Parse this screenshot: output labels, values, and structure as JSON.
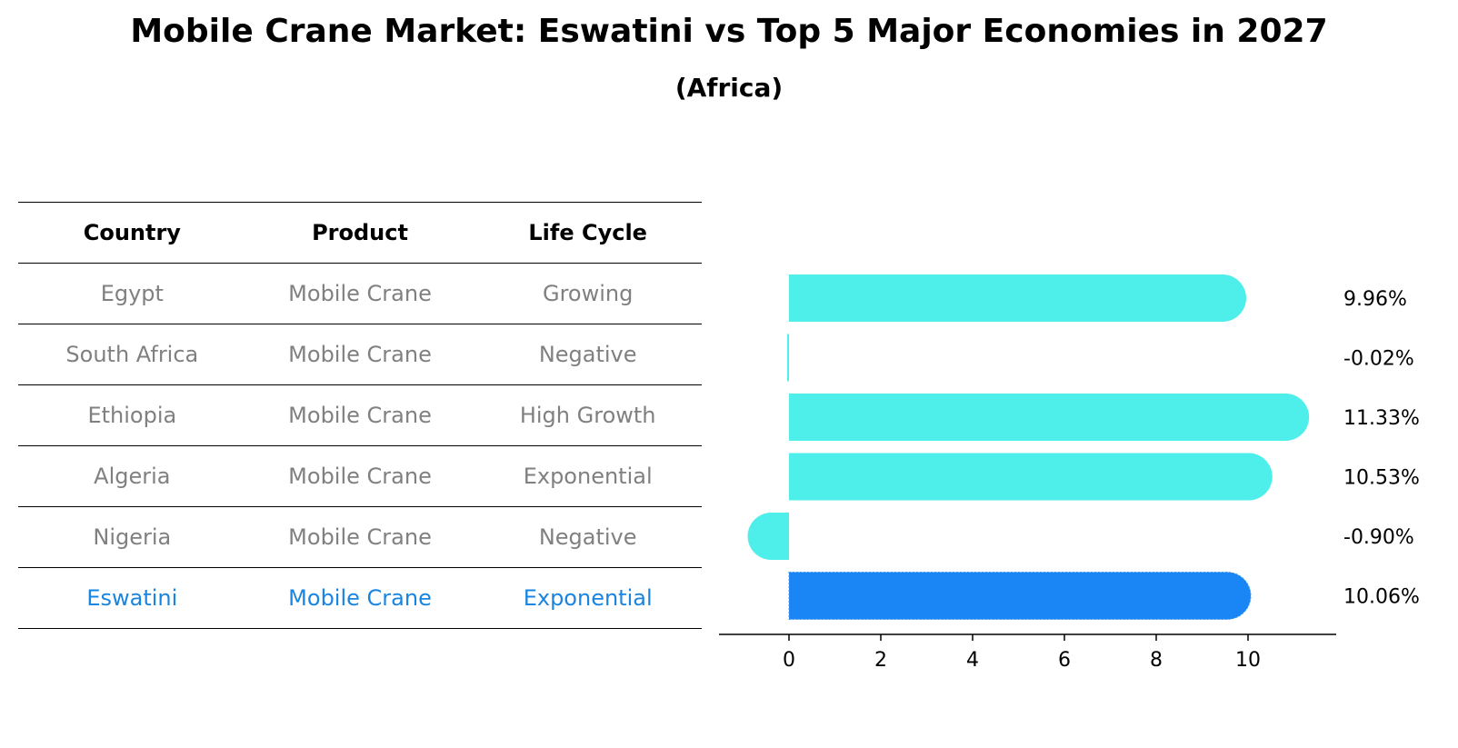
{
  "title": "Mobile Crane Market: Eswatini vs Top 5 Major Economies in 2027",
  "subtitle": "(Africa)",
  "table": {
    "headers": [
      "Country",
      "Product",
      "Life Cycle"
    ],
    "rows": [
      [
        "Egypt",
        "Mobile Crane",
        "Growing"
      ],
      [
        "South Africa",
        "Mobile Crane",
        "Negative"
      ],
      [
        "Ethiopia",
        "Mobile Crane",
        "High Growth"
      ],
      [
        "Algeria",
        "Mobile Crane",
        "Exponential"
      ],
      [
        "Nigeria",
        "Mobile Crane",
        "Negative"
      ],
      [
        "Eswatini",
        "Mobile Crane",
        "Exponential"
      ]
    ],
    "highlight_row": 5,
    "colors": {
      "header": "#000000",
      "text": "#808080",
      "highlight": "#1a85e0"
    }
  },
  "chart_data": {
    "type": "bar",
    "orientation": "horizontal",
    "categories": [
      "Egypt",
      "South Africa",
      "Ethiopia",
      "Algeria",
      "Nigeria",
      "Eswatini"
    ],
    "values": [
      9.96,
      -0.02,
      11.33,
      10.53,
      -0.9,
      10.06
    ],
    "value_labels": [
      "9.96%",
      "-0.02%",
      "11.33%",
      "10.53%",
      "-0.90%",
      "10.06%"
    ],
    "xlim": [
      -1.5,
      12
    ],
    "xticks": [
      0,
      2,
      4,
      6,
      8,
      10
    ],
    "colors": {
      "default": "#4eeeea",
      "highlight": "#1a85f5"
    },
    "highlight_index": 5,
    "grid": false
  }
}
